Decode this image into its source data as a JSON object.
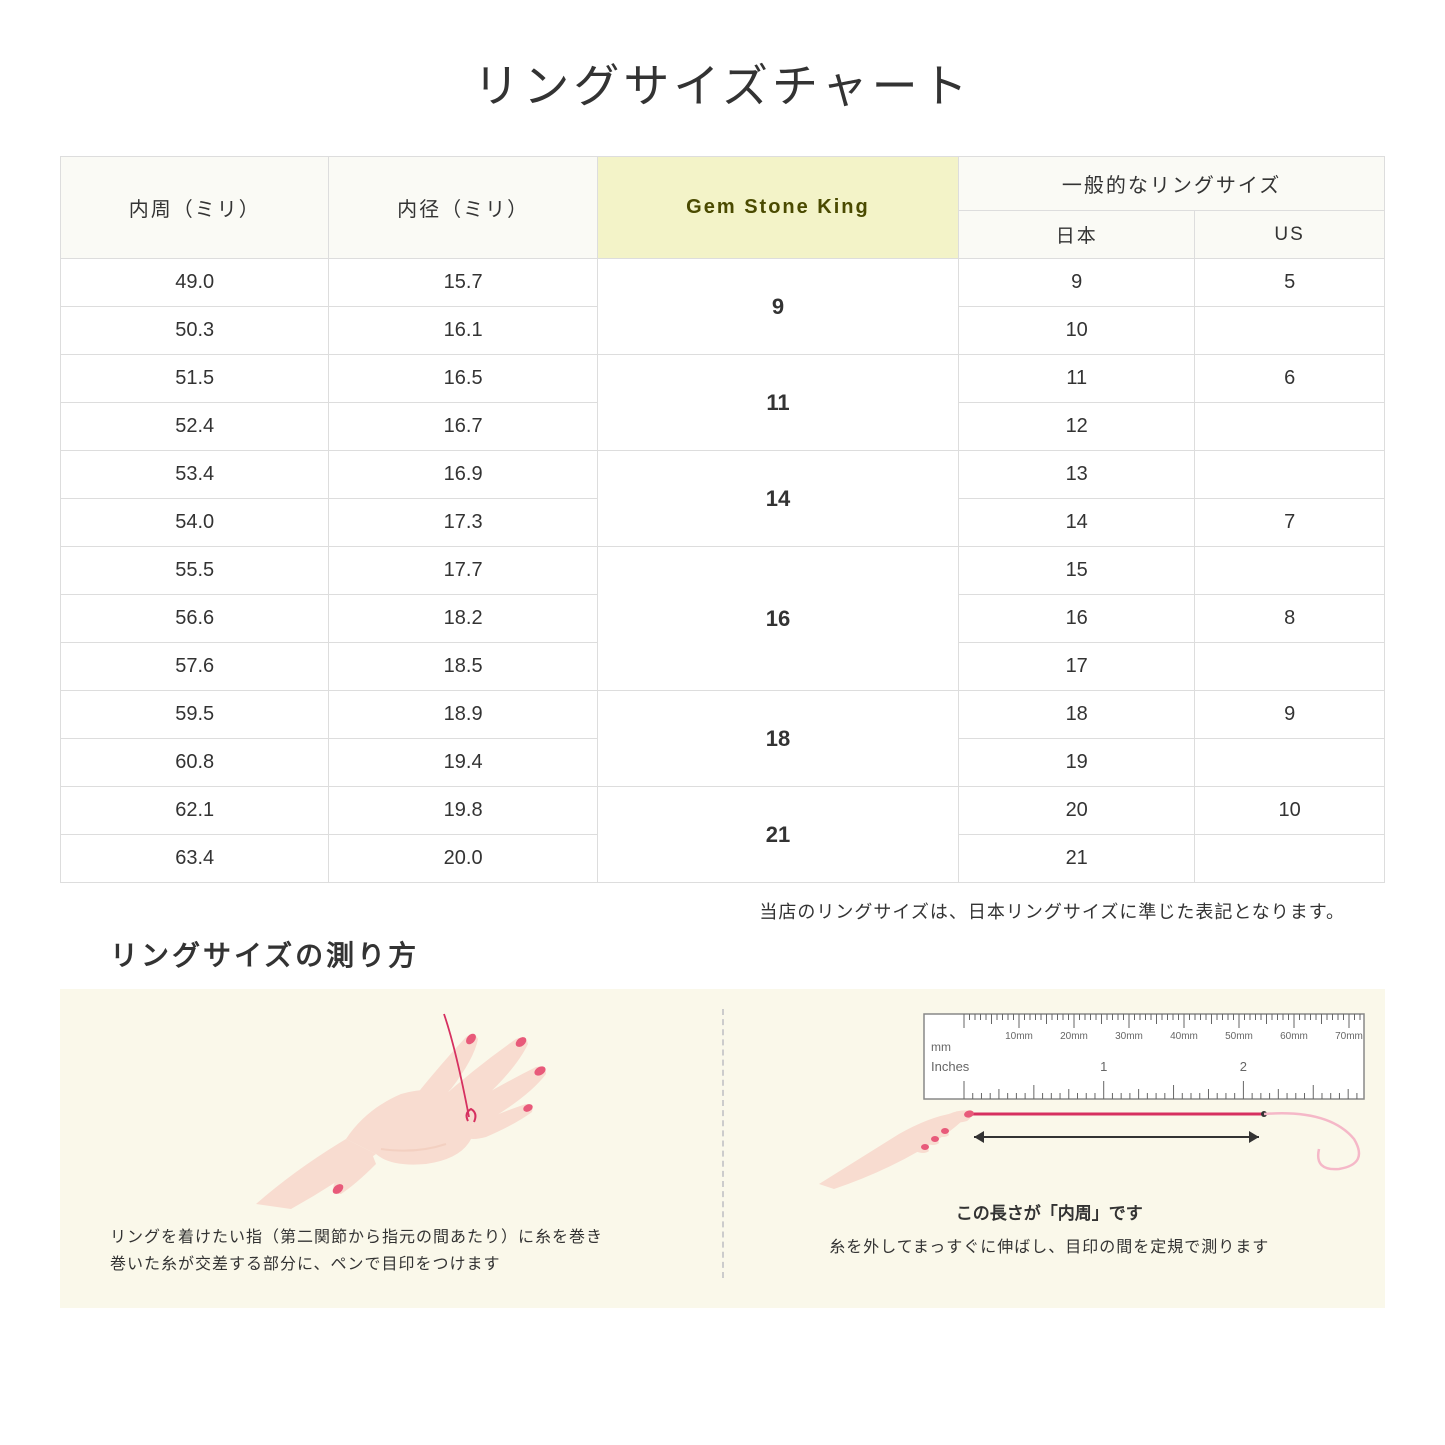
{
  "title": "リングサイズチャート",
  "headers": {
    "col1": "内周（ミリ）",
    "col2": "内径（ミリ）",
    "col3": "Gem Stone King",
    "col4_group": "一般的なリングサイズ",
    "col4a": "日本",
    "col4b": "US"
  },
  "rows": [
    {
      "c1": "49.0",
      "c2": "15.7",
      "jp": "9",
      "us": "5"
    },
    {
      "c1": "50.3",
      "c2": "16.1",
      "jp": "10",
      "us": ""
    },
    {
      "c1": "51.5",
      "c2": "16.5",
      "jp": "11",
      "us": "6"
    },
    {
      "c1": "52.4",
      "c2": "16.7",
      "jp": "12",
      "us": ""
    },
    {
      "c1": "53.4",
      "c2": "16.9",
      "jp": "13",
      "us": ""
    },
    {
      "c1": "54.0",
      "c2": "17.3",
      "jp": "14",
      "us": "7"
    },
    {
      "c1": "55.5",
      "c2": "17.7",
      "jp": "15",
      "us": ""
    },
    {
      "c1": "56.6",
      "c2": "18.2",
      "jp": "16",
      "us": "8"
    },
    {
      "c1": "57.6",
      "c2": "18.5",
      "jp": "17",
      "us": ""
    },
    {
      "c1": "59.5",
      "c2": "18.9",
      "jp": "18",
      "us": "9"
    },
    {
      "c1": "60.8",
      "c2": "19.4",
      "jp": "19",
      "us": ""
    },
    {
      "c1": "62.1",
      "c2": "19.8",
      "jp": "20",
      "us": "10"
    },
    {
      "c1": "63.4",
      "c2": "20.0",
      "jp": "21",
      "us": ""
    }
  ],
  "gsk_groups": [
    {
      "span": 2,
      "val": "9"
    },
    {
      "span": 2,
      "val": "11"
    },
    {
      "span": 2,
      "val": "14"
    },
    {
      "span": 3,
      "val": "16"
    },
    {
      "span": 2,
      "val": "18"
    },
    {
      "span": 2,
      "val": "21"
    }
  ],
  "note": "当店のリングサイズは、日本リングサイズに準じた表記となります。",
  "how_title": "リングサイズの測り方",
  "how_left_text1": "リングを着けたい指（第二関節から指元の間あたり）に糸を巻き",
  "how_left_text2": "巻いた糸が交差する部分に、ペンで目印をつけます",
  "how_right_arrow": "この長さが「内周」です",
  "how_right_text": "糸を外してまっすぐに伸ばし、目印の間を定規で測ります",
  "ruler": {
    "mm_label": "mm",
    "inches_label": "Inches",
    "mm_marks": [
      "10mm",
      "20mm",
      "30mm",
      "40mm",
      "50mm",
      "60mm",
      "70mm"
    ],
    "inch_marks": [
      "1",
      "2"
    ]
  },
  "colors": {
    "hand_skin": "#f8dcd0",
    "hand_skin_dark": "#f0c8b8",
    "nail": "#e85a7a",
    "thread": "#d63060",
    "thread_light": "#f5b8c8",
    "panel_bg": "#faf8ea",
    "header_bg": "#fafaf5",
    "gsk_bg": "#f3f3c8",
    "border": "#dddddd"
  }
}
